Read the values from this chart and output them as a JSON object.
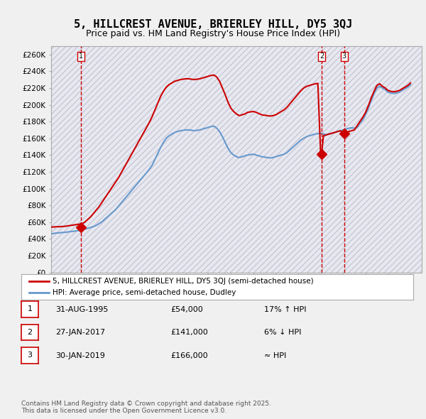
{
  "title_line1": "5, HILLCREST AVENUE, BRIERLEY HILL, DY5 3QJ",
  "title_line2": "Price paid vs. HM Land Registry's House Price Index (HPI)",
  "ylabel": "",
  "background_color": "#f0f0f0",
  "plot_bg_color": "#e8e8f0",
  "hatch_color": "#c8c8d8",
  "grid_color": "#ffffff",
  "red_line_color": "#cc0000",
  "blue_line_color": "#6699cc",
  "sale_marker_color": "#cc0000",
  "vline_color": "#cc0000",
  "ylim": [
    0,
    270000
  ],
  "yticks": [
    0,
    20000,
    40000,
    60000,
    80000,
    100000,
    120000,
    140000,
    160000,
    180000,
    200000,
    220000,
    240000,
    260000
  ],
  "ytick_labels": [
    "£0",
    "£20K",
    "£40K",
    "£60K",
    "£80K",
    "£100K",
    "£120K",
    "£140K",
    "£160K",
    "£180K",
    "£200K",
    "£220K",
    "£240K",
    "£260K"
  ],
  "xmin": 1993.0,
  "xmax": 2026.0,
  "sale_dates": [
    1995.667,
    2017.08,
    2019.08
  ],
  "sale_prices": [
    54000,
    141000,
    166000
  ],
  "sale_labels": [
    "1",
    "2",
    "3"
  ],
  "legend_label_red": "5, HILLCREST AVENUE, BRIERLEY HILL, DY5 3QJ (semi-detached house)",
  "legend_label_blue": "HPI: Average price, semi-detached house, Dudley",
  "table_rows": [
    {
      "num": "1",
      "date": "31-AUG-1995",
      "price": "£54,000",
      "note": "17% ↑ HPI"
    },
    {
      "num": "2",
      "date": "27-JAN-2017",
      "price": "£141,000",
      "note": "6% ↓ HPI"
    },
    {
      "num": "3",
      "date": "30-JAN-2019",
      "price": "£166,000",
      "note": "≈ HPI"
    }
  ],
  "footnote": "Contains HM Land Registry data © Crown copyright and database right 2025.\nThis data is licensed under the Open Government Licence v3.0.",
  "hpi_years": [
    1993.0,
    1993.25,
    1993.5,
    1993.75,
    1994.0,
    1994.25,
    1994.5,
    1994.75,
    1995.0,
    1995.25,
    1995.5,
    1995.75,
    1996.0,
    1996.25,
    1996.5,
    1996.75,
    1997.0,
    1997.25,
    1997.5,
    1997.75,
    1998.0,
    1998.25,
    1998.5,
    1998.75,
    1999.0,
    1999.25,
    1999.5,
    1999.75,
    2000.0,
    2000.25,
    2000.5,
    2000.75,
    2001.0,
    2001.25,
    2001.5,
    2001.75,
    2002.0,
    2002.25,
    2002.5,
    2002.75,
    2003.0,
    2003.25,
    2003.5,
    2003.75,
    2004.0,
    2004.25,
    2004.5,
    2004.75,
    2005.0,
    2005.25,
    2005.5,
    2005.75,
    2006.0,
    2006.25,
    2006.5,
    2006.75,
    2007.0,
    2007.25,
    2007.5,
    2007.75,
    2008.0,
    2008.25,
    2008.5,
    2008.75,
    2009.0,
    2009.25,
    2009.5,
    2009.75,
    2010.0,
    2010.25,
    2010.5,
    2010.75,
    2011.0,
    2011.25,
    2011.5,
    2011.75,
    2012.0,
    2012.25,
    2012.5,
    2012.75,
    2013.0,
    2013.25,
    2013.5,
    2013.75,
    2014.0,
    2014.25,
    2014.5,
    2014.75,
    2015.0,
    2015.25,
    2015.5,
    2015.75,
    2016.0,
    2016.25,
    2016.5,
    2016.75,
    2017.0,
    2017.25,
    2017.5,
    2017.75,
    2018.0,
    2018.25,
    2018.5,
    2018.75,
    2019.0,
    2019.25,
    2019.5,
    2019.75,
    2020.0,
    2020.25,
    2020.5,
    2020.75,
    2021.0,
    2021.25,
    2021.5,
    2021.75,
    2022.0,
    2022.25,
    2022.5,
    2022.75,
    2023.0,
    2023.25,
    2023.5,
    2023.75,
    2024.0,
    2024.25,
    2024.5,
    2024.75,
    2025.0
  ],
  "hpi_values": [
    46000,
    46500,
    47000,
    47200,
    47500,
    47800,
    48200,
    48700,
    49000,
    49500,
    50000,
    50800,
    51500,
    52500,
    53500,
    54500,
    56000,
    58000,
    60000,
    63000,
    66000,
    69000,
    72000,
    75000,
    79000,
    83000,
    87000,
    91000,
    95000,
    99000,
    103000,
    107000,
    111000,
    115000,
    119000,
    123000,
    128000,
    135000,
    142000,
    149000,
    155000,
    160000,
    163000,
    165000,
    167000,
    168000,
    169000,
    169500,
    170000,
    170000,
    169500,
    169000,
    169500,
    170000,
    171000,
    172000,
    173000,
    174000,
    174500,
    172000,
    168000,
    162000,
    155000,
    148000,
    143000,
    140000,
    138000,
    137000,
    138000,
    139000,
    140000,
    140500,
    141000,
    140000,
    139000,
    138000,
    137500,
    137000,
    136500,
    137000,
    138000,
    139000,
    140000,
    141000,
    143000,
    146000,
    149000,
    152000,
    155000,
    158000,
    160000,
    162000,
    163000,
    164000,
    165000,
    165500,
    166000,
    165000,
    164500,
    165000,
    166000,
    167000,
    168000,
    169000,
    170000,
    171000,
    172000,
    172500,
    172000,
    173000,
    178000,
    182000,
    188000,
    196000,
    205000,
    213000,
    220000,
    222000,
    220000,
    218000,
    215000,
    214000,
    213500,
    214000,
    215000,
    217000,
    219000,
    221000,
    224000
  ],
  "red_years": [
    1993.0,
    1993.25,
    1993.5,
    1993.75,
    1994.0,
    1994.25,
    1994.5,
    1994.75,
    1995.0,
    1995.25,
    1995.5,
    1995.667,
    1995.75,
    1996.0,
    1996.25,
    1996.5,
    1996.75,
    1997.0,
    1997.25,
    1997.5,
    1997.75,
    1998.0,
    1998.25,
    1998.5,
    1998.75,
    1999.0,
    1999.25,
    1999.5,
    1999.75,
    2000.0,
    2000.25,
    2000.5,
    2000.75,
    2001.0,
    2001.25,
    2001.5,
    2001.75,
    2002.0,
    2002.25,
    2002.5,
    2002.75,
    2003.0,
    2003.25,
    2003.5,
    2003.75,
    2004.0,
    2004.25,
    2004.5,
    2004.75,
    2005.0,
    2005.25,
    2005.5,
    2005.75,
    2006.0,
    2006.25,
    2006.5,
    2006.75,
    2007.0,
    2007.25,
    2007.5,
    2007.75,
    2008.0,
    2008.25,
    2008.5,
    2008.75,
    2009.0,
    2009.25,
    2009.5,
    2009.75,
    2010.0,
    2010.25,
    2010.5,
    2010.75,
    2011.0,
    2011.25,
    2011.5,
    2011.75,
    2012.0,
    2012.25,
    2012.5,
    2012.75,
    2013.0,
    2013.25,
    2013.5,
    2013.75,
    2014.0,
    2014.25,
    2014.5,
    2014.75,
    2015.0,
    2015.25,
    2015.5,
    2015.75,
    2016.0,
    2016.25,
    2016.5,
    2016.75,
    2017.0,
    2017.08,
    2017.25,
    2017.5,
    2017.75,
    2018.0,
    2018.25,
    2018.5,
    2018.75,
    2019.0,
    2019.08,
    2019.25,
    2019.5,
    2019.75,
    2020.0,
    2020.25,
    2020.5,
    2020.75,
    2021.0,
    2021.25,
    2021.5,
    2021.75,
    2022.0,
    2022.25,
    2022.5,
    2022.75,
    2023.0,
    2023.25,
    2023.5,
    2023.75,
    2024.0,
    2024.25,
    2024.5,
    2024.75,
    2025.0
  ],
  "red_values": [
    54000,
    54200,
    54400,
    54500,
    54700,
    55000,
    55500,
    56000,
    56500,
    57000,
    57500,
    54000,
    58000,
    60000,
    63000,
    66000,
    70000,
    74000,
    78000,
    83000,
    88000,
    93000,
    98000,
    103000,
    108000,
    113000,
    119000,
    125000,
    131000,
    137000,
    143000,
    149000,
    155000,
    161000,
    167000,
    173000,
    179000,
    186000,
    194000,
    202000,
    210000,
    216000,
    221000,
    224000,
    226000,
    228000,
    229000,
    230000,
    230500,
    231000,
    231000,
    230500,
    230000,
    230500,
    231000,
    232000,
    233000,
    234000,
    235000,
    235500,
    233000,
    228000,
    220000,
    212000,
    203000,
    196000,
    192000,
    189000,
    187000,
    188000,
    189000,
    191000,
    191500,
    192000,
    191000,
    189500,
    188000,
    187500,
    187000,
    186500,
    187000,
    188000,
    190000,
    192000,
    194000,
    197000,
    201000,
    205000,
    209000,
    213000,
    217000,
    220000,
    222000,
    223000,
    224000,
    225000,
    225500,
    141000,
    141000,
    163000,
    164000,
    165000,
    166000,
    167000,
    168000,
    169000,
    166000,
    166000,
    167000,
    168000,
    169000,
    170000,
    175000,
    180000,
    185000,
    191000,
    199000,
    208000,
    216000,
    223000,
    225000,
    222000,
    220000,
    217000,
    216000,
    215500,
    216000,
    217000,
    219000,
    221000,
    223000,
    226000
  ]
}
